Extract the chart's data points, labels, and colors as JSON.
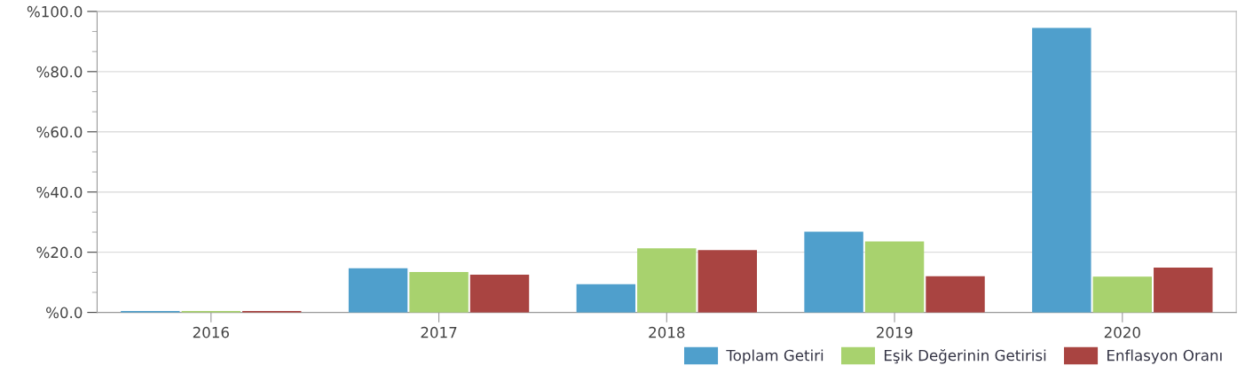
{
  "chart_data": {
    "type": "bar",
    "categories": [
      "2016",
      "2017",
      "2018",
      "2019",
      "2020"
    ],
    "series": [
      {
        "name": "Toplam Getiri",
        "color": "#4f9fcc",
        "values": [
          0.3,
          14.5,
          9.2,
          26.6,
          94.3
        ]
      },
      {
        "name": "Eşik Değerinin Getirisi",
        "color": "#a8d26e",
        "values": [
          0.3,
          13.2,
          21.1,
          23.4,
          11.7
        ]
      },
      {
        "name": "Enflasyon Oranı",
        "color": "#a94441",
        "values": [
          0.3,
          12.3,
          20.5,
          11.8,
          14.7
        ]
      }
    ],
    "ylim": [
      0,
      100
    ],
    "yticks": [
      {
        "value": 0,
        "label": "%0.0"
      },
      {
        "value": 20,
        "label": "%20.0"
      },
      {
        "value": 40,
        "label": "%40.0"
      },
      {
        "value": 60,
        "label": "%60.0"
      },
      {
        "value": 80,
        "label": "%80.0"
      },
      {
        "value": 100,
        "label": "%100.0"
      }
    ],
    "grid": "y",
    "legend": "bottom right"
  }
}
